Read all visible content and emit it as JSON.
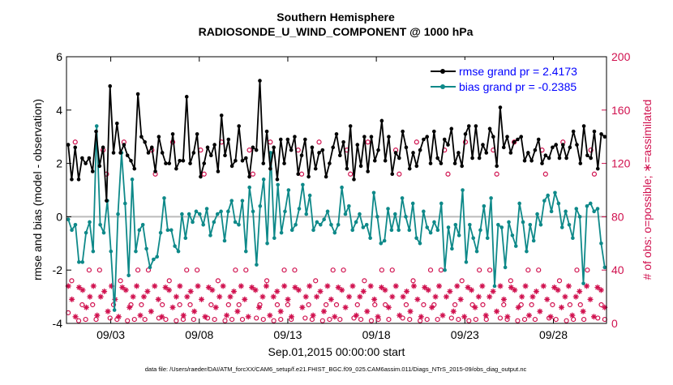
{
  "chart_data": {
    "type": "line",
    "title": "Southern Hemisphere",
    "subtitle": "RADIOSONDE_U_WIND_COMPONENT @ 1000 hPa",
    "xlabel": "Sep.01,2015 00:00:00 start",
    "ylabel": "rmse and bias (model - observation)",
    "y2label": "# of obs: o=possible; ∗=assimilated",
    "footnote": "data file: /Users/raeder/DAI/ATM_forcXX/CAM6_setup/f.e21.FHIST_BGC.f09_025.CAM6assim.011/Diags_NTrS_2015-09/obs_diag_output.nc",
    "xlim": [
      0,
      30.5
    ],
    "ylim": [
      -4,
      6
    ],
    "y2lim": [
      0,
      200
    ],
    "xticks": [
      2.5,
      7.5,
      12.5,
      17.5,
      22.5,
      27.5
    ],
    "xtick_labels": [
      "09/03",
      "09/08",
      "09/13",
      "09/18",
      "09/23",
      "09/28"
    ],
    "yticks": [
      -4,
      -2,
      0,
      2,
      4,
      6
    ],
    "ytick_labels": [
      "-4",
      "-2",
      "0",
      "2",
      "4",
      "6"
    ],
    "y2ticks": [
      0,
      40,
      80,
      120,
      160,
      200
    ],
    "y2tick_labels": [
      "0",
      "40",
      "80",
      "120",
      "160",
      "200"
    ],
    "legend_position": "top-right",
    "colors": {
      "rmse": "#000000",
      "bias": "#0e8989",
      "obs": "#d0104e",
      "right_axis": "#d0104e",
      "zero_line": "#bbbbbb",
      "legend_text": "#0000ff"
    },
    "series": [
      {
        "name": "rmse grand pr = 2.4173",
        "axis": "left",
        "marker": "dot-line",
        "values": [
          2.7,
          1.4,
          2.6,
          1.4,
          2.2,
          2.0,
          2.2,
          1.7,
          3.2,
          1.9,
          2.6,
          0.6,
          4.9,
          2.4,
          3.5,
          2.4,
          2.7,
          2.3,
          2.1,
          1.8,
          4.6,
          3.0,
          2.8,
          2.4,
          2.6,
          1.7,
          3.0,
          2.4,
          2.0,
          2.0,
          3.1,
          1.8,
          2.1,
          2.1,
          4.5,
          2.0,
          2.4,
          3.1,
          1.5,
          2.0,
          2.6,
          2.3,
          2.7,
          1.7,
          3.8,
          2.3,
          2.9,
          1.9,
          2.1,
          3.4,
          2.1,
          2.2,
          1.5,
          2.6,
          2.5,
          5.1,
          2.0,
          3.2,
          1.8,
          2.6,
          1.4,
          2.9,
          2.0,
          2.9,
          2.5,
          3.0,
          1.6,
          2.3,
          2.9,
          1.5,
          2.6,
          1.8,
          2.4,
          2.5,
          1.5,
          2.0,
          2.6,
          3.1,
          2.3,
          2.8,
          1.8,
          3.4,
          1.4,
          2.7,
          1.9,
          3.0,
          1.7,
          3.0,
          2.1,
          2.5,
          3.6,
          2.1,
          3.0,
          1.6,
          2.4,
          2.2,
          3.2,
          2.6,
          1.8,
          2.4,
          1.9,
          2.5,
          2.9,
          3.0,
          2.0,
          3.2,
          2.2,
          2.0,
          2.9,
          2.7,
          3.3,
          2.0,
          2.4,
          1.9,
          3.1,
          3.4,
          2.2,
          3.4,
          2.2,
          2.7,
          2.4,
          3.3,
          3.0,
          1.9,
          4.1,
          2.6,
          3.0,
          2.4,
          2.8,
          2.9,
          3.0,
          2.1,
          2.4,
          2.1,
          2.5,
          2.9,
          2.0,
          2.3,
          2.2,
          2.6,
          2.7,
          2.2,
          2.7,
          2.2,
          2.6,
          3.2,
          2.7,
          2.0,
          3.4,
          2.3,
          2.2,
          3.2,
          1.8,
          3.1,
          3.0
        ]
      },
      {
        "name": "bias grand pr = -0.2385",
        "axis": "left",
        "marker": "dot-line",
        "values": [
          -0.1,
          -0.5,
          -0.3,
          -1.7,
          -1.7,
          -0.6,
          -0.2,
          -1.3,
          3.4,
          -0.3,
          -0.6,
          0.6,
          -1.3,
          -3.5,
          0.1,
          2.4,
          0.5,
          -2.2,
          1.4,
          -1.3,
          -0.5,
          -0.3,
          -1.2,
          -1.9,
          -1.6,
          -1.5,
          -0.6,
          0.7,
          -0.5,
          -0.5,
          -1.1,
          -1.3,
          0.1,
          -0.8,
          0.1,
          -0.2,
          0.2,
          0.1,
          -0.3,
          0.3,
          -0.7,
          -0.2,
          0.1,
          0.2,
          -0.9,
          0.2,
          0.6,
          -0.2,
          -0.3,
          0.6,
          -1.3,
          1.1,
          0.2,
          -1.8,
          0.4,
          1.4,
          -1.0,
          2.4,
          -0.8,
          1.2,
          -0.6,
          0.2,
          1.0,
          -0.5,
          -0.3,
          0.3,
          1.2,
          0.1,
          0.8,
          -0.5,
          -0.2,
          -0.3,
          -0.1,
          0.2,
          -0.3,
          -0.6,
          -0.3,
          1.1,
          0.1,
          0.4,
          -0.5,
          -0.2,
          0.1,
          -0.4,
          -0.3,
          -0.8,
          0.9,
          0.0,
          -1.0,
          -0.9,
          0.3,
          -0.5,
          0.1,
          -0.5,
          0.7,
          0.0,
          -0.5,
          0.5,
          -0.8,
          -1.0,
          0.2,
          -0.4,
          -0.6,
          -0.2,
          -0.5,
          0.5,
          -2.0,
          -0.4,
          -1.2,
          -0.3,
          -0.7,
          1.0,
          -1.7,
          -0.3,
          -0.8,
          -1.3,
          -0.5,
          0.4,
          -0.8,
          0.7,
          -2.6,
          -0.3,
          -0.4,
          -1.9,
          -0.2,
          -0.7,
          -1.1,
          0.5,
          -0.2,
          -1.3,
          -0.3,
          -0.9,
          0.1,
          -0.3,
          0.6,
          0.8,
          0.2,
          0.9,
          0.5,
          -0.4,
          0.2,
          -0.3,
          -0.8,
          0.3,
          0.0,
          -2.5,
          0.4,
          0.5,
          0.2,
          0.3,
          -1.0,
          -1.9
        ]
      },
      {
        "name": "possible obs",
        "axis": "right",
        "marker": "circle",
        "values": [
          8,
          32,
          136,
          2,
          14,
          3,
          40,
          14,
          3,
          40,
          130,
          112,
          4,
          14,
          3,
          32,
          136,
          2,
          14,
          3,
          40,
          14,
          3,
          40,
          130,
          112,
          4,
          14,
          3,
          32,
          136,
          2,
          14,
          3,
          40,
          14,
          3,
          40,
          130,
          112,
          4,
          14,
          3,
          32,
          136,
          2,
          14,
          3,
          40,
          14,
          3,
          40,
          130,
          112,
          4,
          14,
          3,
          32,
          136,
          2,
          14,
          3,
          40,
          14,
          3,
          40,
          130,
          112,
          4,
          14,
          3,
          32,
          136,
          2,
          14,
          3,
          40,
          14,
          3,
          40,
          130,
          112,
          4,
          14,
          3,
          32,
          136,
          2,
          14,
          3,
          40,
          14,
          3,
          40,
          130,
          112,
          4,
          14,
          3,
          32,
          136,
          2,
          14,
          3,
          40,
          14,
          3,
          40,
          130,
          112,
          4,
          14,
          3,
          32,
          136,
          2,
          14,
          3,
          40,
          14,
          3,
          40,
          130,
          112,
          4,
          14,
          3,
          32,
          136,
          2,
          14,
          3,
          40,
          14,
          3,
          40,
          130,
          112,
          4,
          14,
          3,
          32,
          136,
          2,
          14,
          3,
          40,
          14,
          3,
          40,
          130,
          112,
          4,
          14,
          3
        ]
      },
      {
        "name": "assimilated obs",
        "axis": "right",
        "marker": "asterisk",
        "values": [
          28,
          18,
          5,
          27,
          25,
          12,
          20,
          28,
          6,
          20,
          24,
          9,
          28,
          18,
          5,
          27,
          25,
          12,
          20,
          28,
          6,
          20,
          24,
          9,
          28,
          18,
          5,
          27,
          25,
          12,
          20,
          28,
          6,
          20,
          24,
          9,
          28,
          18,
          5,
          27,
          25,
          12,
          20,
          28,
          6,
          20,
          24,
          9,
          28,
          18,
          5,
          27,
          25,
          12,
          20,
          28,
          6,
          20,
          24,
          9,
          28,
          18,
          5,
          27,
          25,
          12,
          20,
          28,
          6,
          20,
          24,
          9,
          28,
          18,
          5,
          27,
          25,
          12,
          20,
          28,
          6,
          20,
          24,
          9,
          28,
          18,
          5,
          27,
          25,
          12,
          20,
          28,
          6,
          20,
          24,
          9,
          28,
          18,
          5,
          27,
          25,
          12,
          20,
          28,
          6,
          20,
          24,
          9,
          28,
          18,
          5,
          27,
          25,
          12,
          20,
          28,
          6,
          20,
          24,
          9,
          28,
          18,
          5,
          27,
          25,
          12,
          20,
          28,
          6,
          20,
          24,
          9,
          28,
          18,
          5,
          27,
          25,
          12,
          20,
          28,
          6,
          20,
          24,
          9,
          28,
          18,
          5,
          27,
          25,
          12
        ]
      }
    ]
  }
}
